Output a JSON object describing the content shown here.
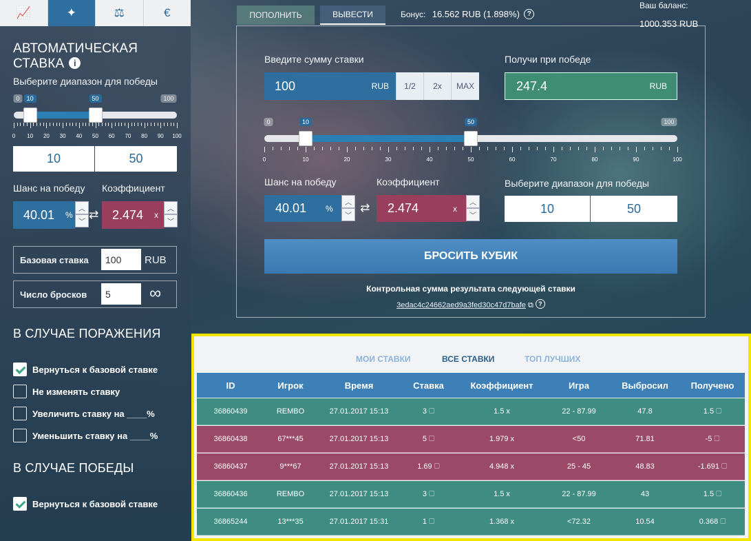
{
  "sidebar": {
    "tabs": [
      {
        "icon": "chart-icon",
        "glyph": "📈"
      },
      {
        "icon": "magic-wand-icon",
        "glyph": "✦"
      },
      {
        "icon": "scales-icon",
        "glyph": "⚖"
      },
      {
        "icon": "euro-icon",
        "glyph": "€"
      }
    ],
    "title": "АВТОМАТИЧЕСКАЯ СТАВКА",
    "info_glyph": "i",
    "range_label": "Выберите диапазон для победы",
    "slider": {
      "min": "0",
      "max": "100",
      "low": "10",
      "high": "50",
      "ticks": [
        "0",
        "10",
        "20",
        "30",
        "40",
        "50",
        "60",
        "70",
        "80",
        "90",
        "100"
      ]
    },
    "range_from": "10",
    "range_to": "50",
    "chance_label": "Шанс на победу",
    "coef_label": "Коэффициент",
    "chance_value": "40.01",
    "chance_unit": "%",
    "coef_value": "2.474",
    "coef_unit": "x",
    "swap_glyph": "⇄",
    "base_label": "Базовая ставка",
    "base_value": "100",
    "base_currency": "RUB",
    "rolls_label": "Число бросков",
    "rolls_value": "5",
    "infinity": "∞",
    "lose_heading": "В СЛУЧАЕ ПОРАЖЕНИЯ",
    "lose_options": [
      {
        "label": "Вернуться к базовой ставке",
        "checked": true
      },
      {
        "label": "Не изменять ставку",
        "checked": false
      },
      {
        "label": "Увеличить ставку на ____%",
        "checked": false
      },
      {
        "label": "Уменьшить ставку на ____%",
        "checked": false
      }
    ],
    "win_heading": "В СЛУЧАЕ ПОБЕДЫ",
    "win_options": [
      {
        "label": "Вернуться к базовой ставке",
        "checked": true
      }
    ]
  },
  "top": {
    "deposit": "ПОПОЛНИТЬ",
    "withdraw": "ВЫВЕСТИ",
    "bonus_label": "Бонус:",
    "bonus_value": "16.562 RUB (1.898%)",
    "help_glyph": "?",
    "balance_label": "Ваш баланс:",
    "balance_value": "1000.353 RUB"
  },
  "bet": {
    "amount_label": "Введите сумму ставки",
    "amount_value": "100",
    "amount_currency": "RUB",
    "half": "1/2",
    "double": "2x",
    "max": "MAX",
    "payout_label": "Получи при победе",
    "payout_value": "247.4",
    "payout_currency": "RUB",
    "slider": {
      "min": "0",
      "max": "100",
      "low": "10",
      "high": "50",
      "ticks": [
        "0",
        "10",
        "20",
        "30",
        "40",
        "50",
        "60",
        "70",
        "80",
        "90",
        "100"
      ]
    },
    "chance_label": "Шанс на победу",
    "coef_label": "Коэффициент",
    "chance_value": "40.01",
    "chance_unit": "%",
    "coef_value": "2.474",
    "coef_unit": "x",
    "range_label": "Выберите диапазон для победы",
    "range_from": "10",
    "range_to": "50",
    "roll_button": "БРОСИТЬ КУБИК",
    "checksum_label": "Контрольная сумма результата следующей ставки",
    "checksum_value": "3edac4c24662aed9a3fed30c47d7bafe",
    "copy_glyph": "⧉"
  },
  "table": {
    "tabs": [
      "МОИ СТАВКИ",
      "ВСЕ СТАВКИ",
      "ТОП ЛУЧШИХ"
    ],
    "active_tab": 1,
    "headers": [
      "ID",
      "Игрок",
      "Время",
      "Ставка",
      "Коэффициент",
      "Игра",
      "Выбросил",
      "Получено"
    ],
    "coin_glyph": "🗆",
    "rows": [
      {
        "result": "win",
        "cells": [
          "36860439",
          "REMBO",
          "27.01.2017 15:13",
          "3 🗆",
          "1.5 x",
          "22 - 87.99",
          "47.8",
          "1.5 🗆"
        ]
      },
      {
        "result": "loss",
        "cells": [
          "36860438",
          "67***45",
          "27.01.2017 15:13",
          "5 🗆",
          "1.979 x",
          "<50",
          "71.81",
          "-5 🗆"
        ]
      },
      {
        "result": "loss",
        "cells": [
          "36860437",
          "9***67",
          "27.01.2017 15:13",
          "1.69 🗆",
          "4.948 x",
          "25 - 45",
          "48.83",
          "-1.691 🗆"
        ]
      },
      {
        "result": "win",
        "cells": [
          "36860436",
          "REMBO",
          "27.01.2017 15:13",
          "3 🗆",
          "1.5 x",
          "22 - 87.99",
          "43",
          "1.5 🗆"
        ]
      },
      {
        "result": "win",
        "cells": [
          "36865244",
          "13***35",
          "27.01.2017 15:31",
          "1 🗆",
          "1.368 x",
          "<72.32",
          "10.54",
          "0.368 🗆"
        ]
      }
    ]
  },
  "colors": {
    "win": "#3f8d82",
    "loss": "#9a4a66",
    "blue": "#2f6f9f"
  }
}
